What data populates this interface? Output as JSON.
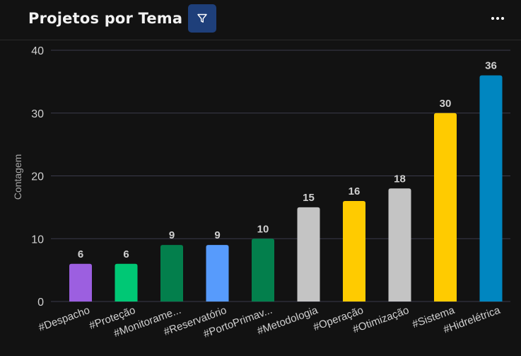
{
  "header": {
    "title": "Projetos por Tema",
    "filter_icon": "filter-icon",
    "more_icon": "more-horizontal-icon"
  },
  "colors": {
    "background": "#121212",
    "gridline": "#3a3a4a",
    "filter_button": "#1e3f7a",
    "label_text": "#d0d0d0"
  },
  "chart_data": {
    "type": "bar",
    "ylabel": "Contagem",
    "xlabel": "",
    "ylim": [
      0,
      40
    ],
    "yticks": [
      0,
      10,
      20,
      30,
      40
    ],
    "grid": true,
    "categories": [
      "#Despacho",
      "#Proteção",
      "#Monitorame...",
      "#Reservatório",
      "#PortoPrimav...",
      "#Metodologia",
      "#Operação",
      "#Otimização",
      "#Sistema",
      "#Hidrelétrica"
    ],
    "values": [
      6,
      6,
      9,
      9,
      10,
      15,
      16,
      18,
      30,
      36
    ],
    "bar_colors": [
      "#9c5fe0",
      "#00c875",
      "#037f4c",
      "#579bfc",
      "#037f4c",
      "#c4c4c4",
      "#ffcb00",
      "#c4c4c4",
      "#ffcb00",
      "#0086c0"
    ]
  }
}
